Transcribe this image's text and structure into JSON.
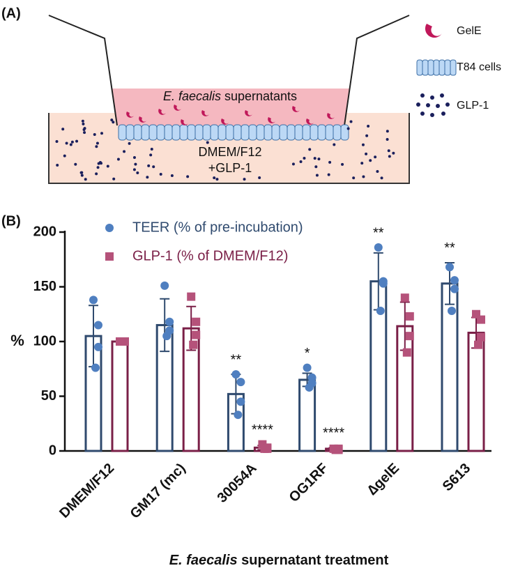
{
  "panel_a": {
    "label": "(A)",
    "supernatant_italic": "E. faecalis",
    "supernatant_rest": " supernatants",
    "medium_line1": "DMEM/F12",
    "medium_line2": "+GLP-1",
    "legend": [
      "GelE",
      "T84 cells",
      "GLP-1"
    ]
  },
  "chart_data": {
    "type": "bar",
    "panel_label": "(B)",
    "ylabel": "%",
    "xlabel_italic": "E. faecalis",
    "xlabel_rest": " supernatant treatment",
    "categories": [
      "DMEM/F12",
      "GM17 (mc)",
      "30054A",
      "OG1RF",
      "∆gelE",
      "S613"
    ],
    "ylim": [
      0,
      200
    ],
    "yticks": [
      0,
      50,
      100,
      150,
      200
    ],
    "series": [
      {
        "name": "TEER (% of pre-incubation)",
        "color": "#4f7fc0",
        "edge_color": "#2f4a6e",
        "marker": "circle",
        "values": [
          105,
          115,
          52,
          65,
          155,
          153
        ],
        "errors": [
          28,
          24,
          18,
          6,
          26,
          19
        ],
        "points": [
          [
            138,
            115,
            95,
            76
          ],
          [
            151,
            118,
            110,
            105
          ],
          [
            70,
            63,
            45,
            33
          ],
          [
            76,
            67,
            62,
            58
          ],
          [
            186,
            155,
            153,
            128
          ],
          [
            168,
            156,
            148,
            128
          ]
        ],
        "annotations": [
          null,
          null,
          "**",
          "*",
          "**",
          "**"
        ]
      },
      {
        "name": "GLP-1 (% of DMEM/F12)",
        "color": "#b5527a",
        "edge_color": "#7a1f47",
        "marker": "square",
        "values": [
          100,
          112,
          3,
          2,
          114,
          108
        ],
        "errors": [
          0,
          20,
          2,
          1,
          22,
          14
        ],
        "points": [
          [
            100,
            100,
            100,
            100
          ],
          [
            141,
            118,
            106,
            97
          ],
          [
            6,
            3,
            2,
            2
          ],
          [
            2,
            2,
            1,
            1
          ],
          [
            140,
            123,
            105,
            90
          ],
          [
            125,
            120,
            104,
            97
          ]
        ],
        "annotations": [
          null,
          null,
          "****",
          "****",
          null,
          null
        ]
      }
    ]
  }
}
